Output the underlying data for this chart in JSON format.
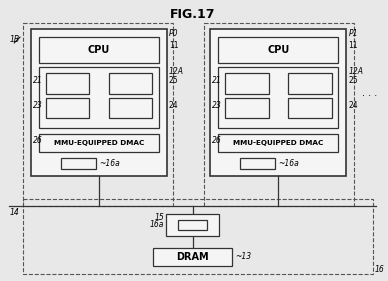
{
  "title": "FIG.17",
  "bg_color": "#e8e8e8",
  "box_face": "#f5f5f5",
  "box_edge": "#333333",
  "dashed_edge": "#555555",
  "fig_width": 3.88,
  "fig_height": 2.81,
  "labels": {
    "title": "FIG.17",
    "p0": "P0",
    "p1": "P1",
    "cpu": "CPU",
    "mmu": "MMU-EQUIPPED DMAC",
    "dram": "DRAM",
    "16a": "16a",
    "1b": "1B",
    "dots": ". . .",
    "n11": "11",
    "n12a": "12A",
    "n21": "21",
    "n23": "23",
    "n24": "24",
    "n25": "25",
    "n26": "26",
    "n14": "14",
    "n15": "15",
    "n16": "16",
    "n13": "13",
    "n16a_bot": "16a"
  }
}
